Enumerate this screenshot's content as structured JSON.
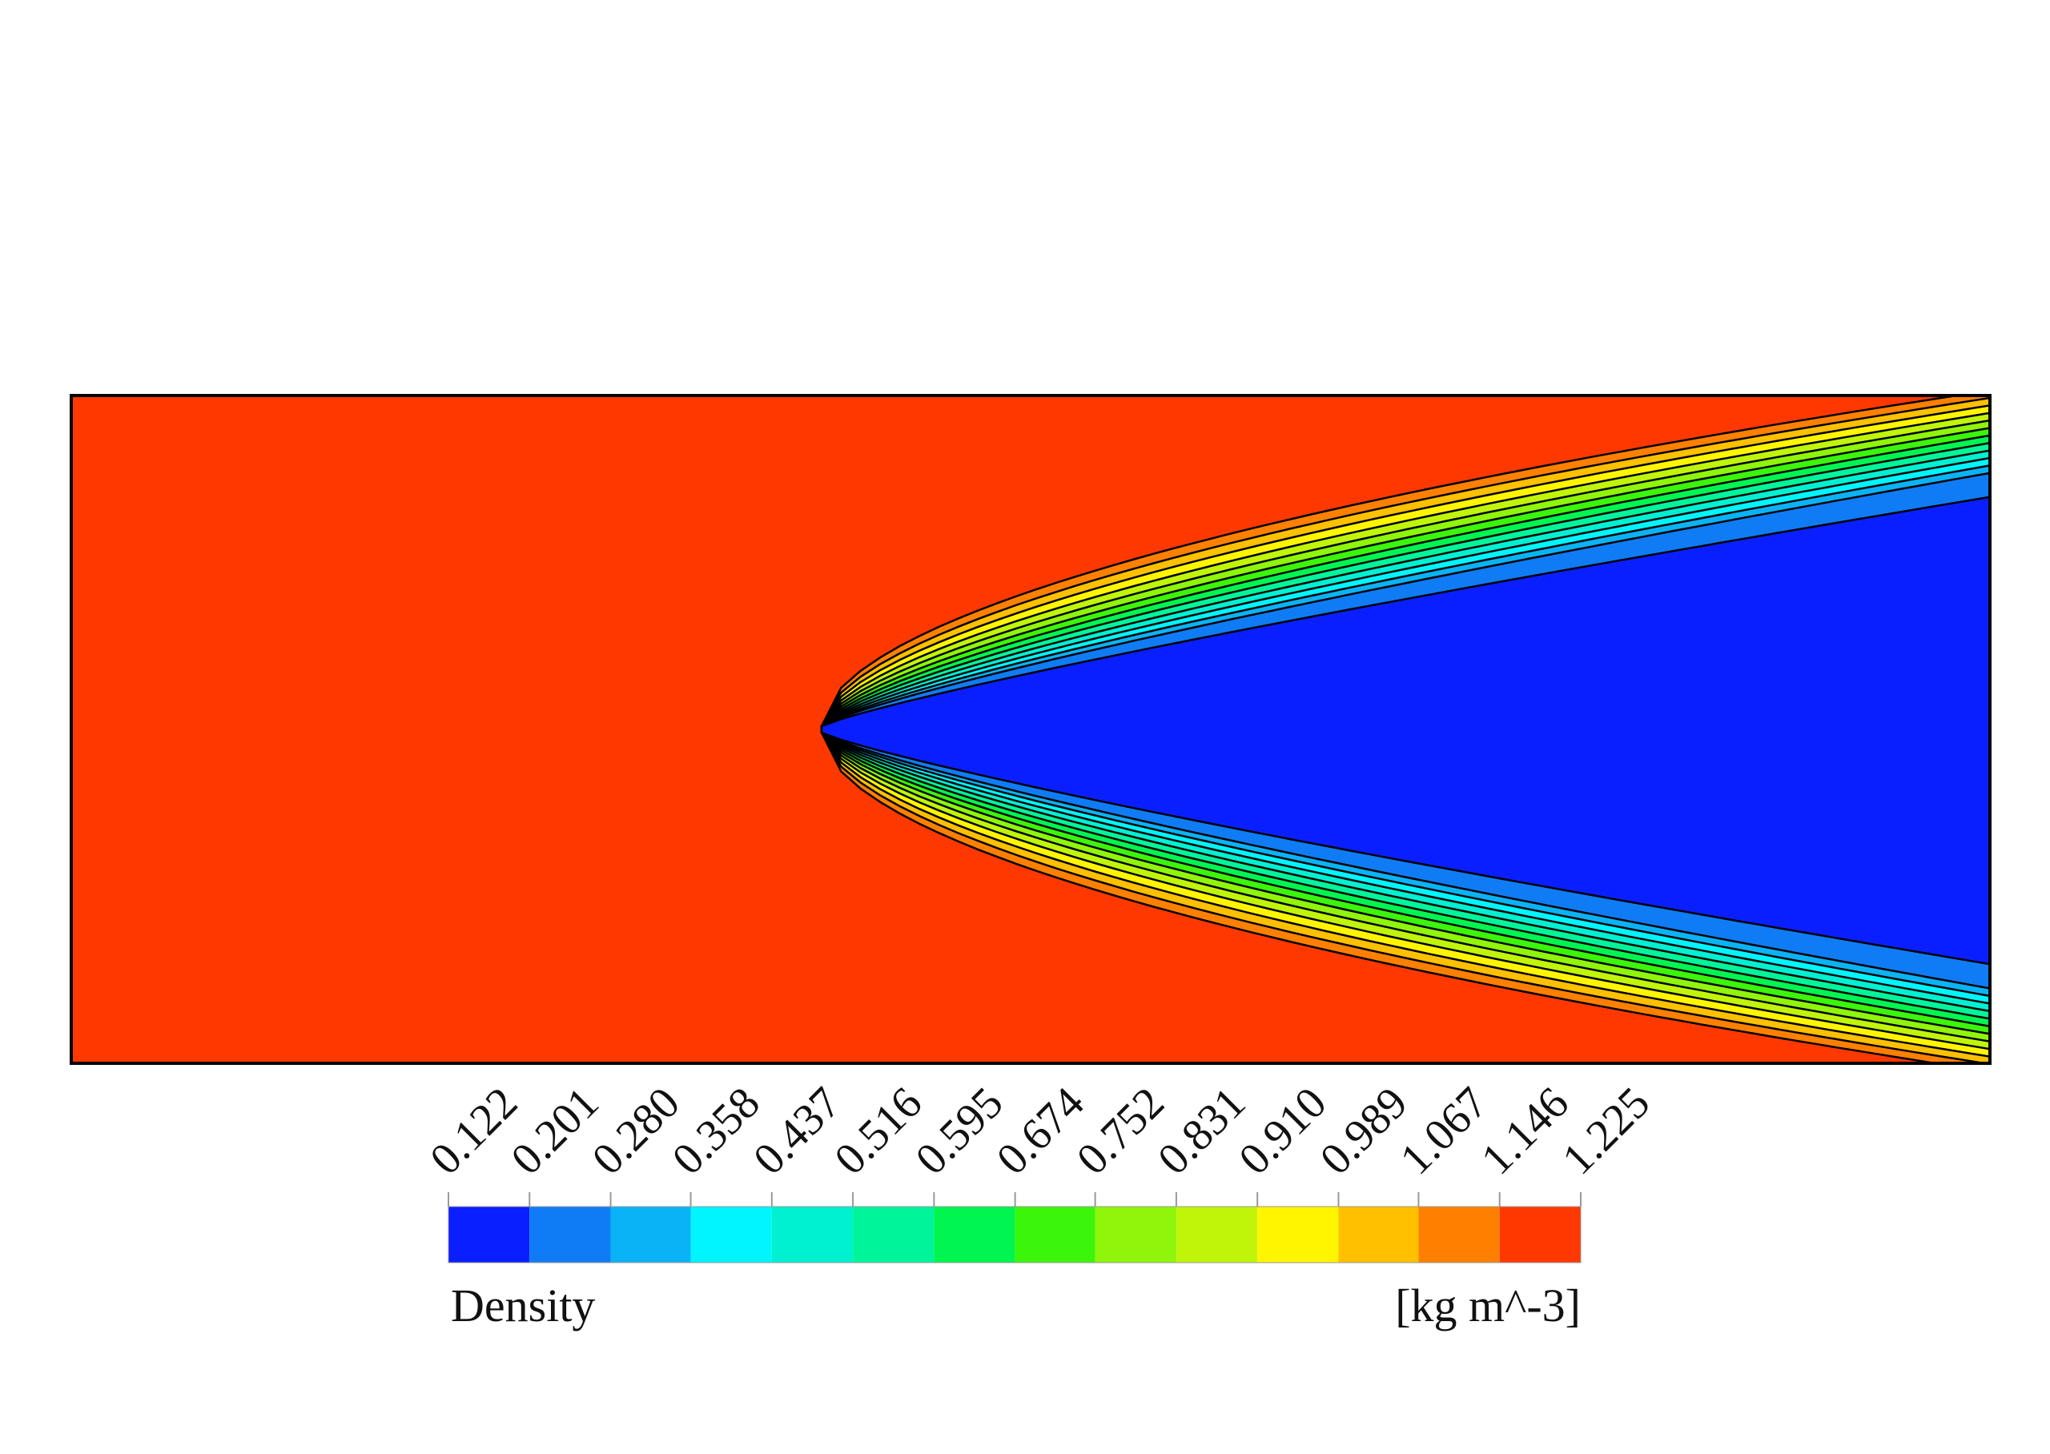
{
  "chart_data": {
    "type": "contour",
    "variable": "Density",
    "units": "[kg m^-3]",
    "levels": [
      0.122,
      0.201,
      {
        "value": 0.28,
        "label": "0.280"
      },
      0.358,
      0.437,
      0.516,
      0.595,
      0.674,
      0.752,
      0.831,
      {
        "value": 0.91,
        "label": "0.910"
      },
      0.989,
      1.067,
      1.146,
      1.225
    ],
    "colors": [
      "#0a1fff",
      "#0f7cf5",
      "#0ab3f6",
      "#00f5ff",
      "#00f0d2",
      "#00f59a",
      "#00f550",
      "#3bf50a",
      "#8ff50a",
      "#c0f50a",
      "#fff500",
      "#ffc000",
      "#ff8000",
      "#ff3800"
    ]
  }
}
